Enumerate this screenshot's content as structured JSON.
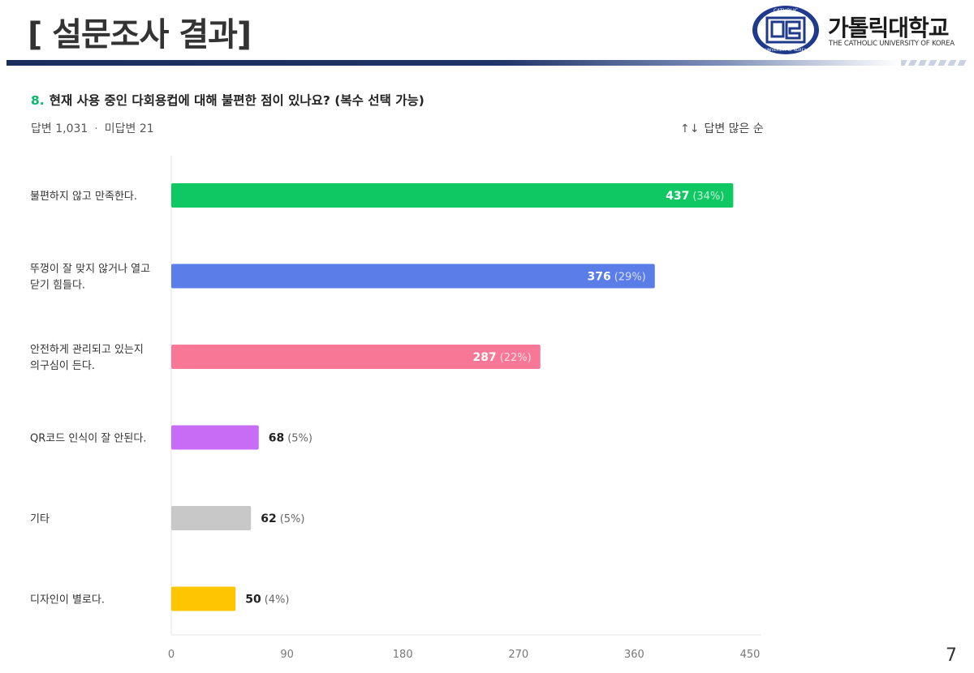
{
  "slide": {
    "title": "[ 설문조사 결과]",
    "page_number": "7"
  },
  "logo": {
    "name": "가톨릭대학교",
    "subtitle": "THE CATHOLIC UNIVERSITY OF KOREA",
    "emblem_text_top": "CATHOLIC",
    "emblem_text_bottom": "UNIVERSITY OF KOREA"
  },
  "survey": {
    "question_number": "8.",
    "question_text": "현재 사용 중인 다회용컵에 대해 불편한 점이 있나요? (복수 선택 가능)",
    "answered": "답변 1,031",
    "separator": "·",
    "unanswered": "미답변 21",
    "sort_icon": "↑↓",
    "sort_label": "답변 많은 순"
  },
  "colors": {
    "accent_green": "#0bb96a",
    "header_navy": "#1b2d5a"
  },
  "chart_data": {
    "type": "bar",
    "orientation": "horizontal",
    "categories": [
      [
        "불편하지 않고 만족한다."
      ],
      [
        "뚜껑이 잘 맞지 않거나 열고",
        "닫기 힘들다."
      ],
      [
        "안전하게 관리되고 있는지",
        "의구심이 든다."
      ],
      [
        "QR코드 인식이 잘 안된다."
      ],
      [
        "기타"
      ],
      [
        "디자인이 별로다."
      ]
    ],
    "values": [
      437,
      376,
      287,
      68,
      62,
      50
    ],
    "percent_labels": [
      "(34%)",
      "(29%)",
      "(22%)",
      "(5%)",
      "(5%)",
      "(4%)"
    ],
    "bar_colors": [
      "#0fc864",
      "#5b7de8",
      "#f87796",
      "#c96cf5",
      "#c8c8c8",
      "#fdc502"
    ],
    "xlim": [
      0,
      450
    ],
    "xticks": [
      0,
      90,
      180,
      270,
      360,
      450
    ],
    "grid": false
  }
}
